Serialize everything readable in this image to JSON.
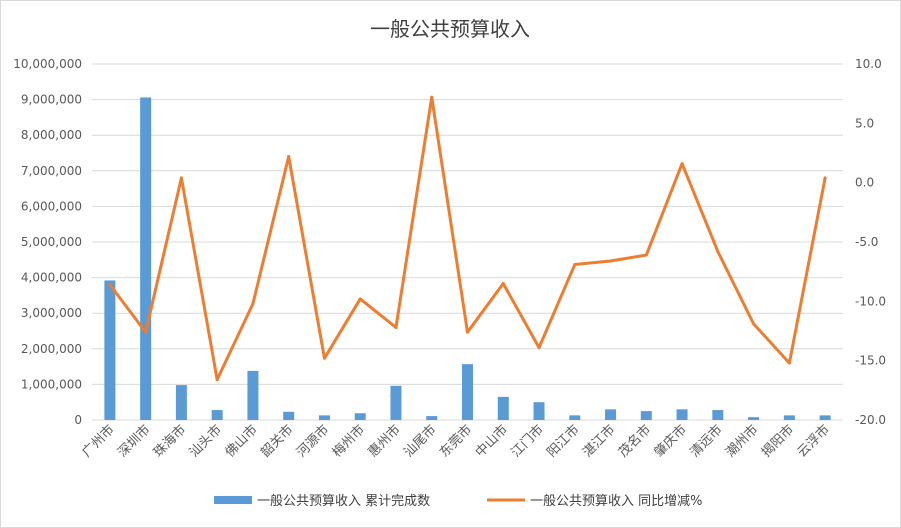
{
  "chart_data": {
    "type": "bar+line",
    "title": "一般公共预算收入",
    "categories": [
      "广州市",
      "深圳市",
      "珠海市",
      "汕头市",
      "佛山市",
      "韶关市",
      "河源市",
      "梅州市",
      "惠州市",
      "汕尾市",
      "东莞市",
      "中山市",
      "江门市",
      "阳江市",
      "湛江市",
      "茂名市",
      "肇庆市",
      "清远市",
      "潮州市",
      "揭阳市",
      "云浮市"
    ],
    "series": [
      {
        "name": "一般公共预算收入 累计完成数",
        "type": "bar",
        "axis": "left",
        "color": "#5B9BD5",
        "values": [
          3920000,
          9060000,
          980000,
          280000,
          1380000,
          230000,
          130000,
          190000,
          960000,
          110000,
          1570000,
          650000,
          500000,
          130000,
          300000,
          250000,
          300000,
          280000,
          80000,
          130000,
          130000
        ]
      },
      {
        "name": "一般公共预算收入 同比增减%",
        "type": "line",
        "axis": "right",
        "color": "#ED7D31",
        "values": [
          -8.6,
          -12.6,
          0.4,
          -16.6,
          -10.2,
          2.2,
          -14.8,
          -9.8,
          -12.2,
          7.2,
          -12.6,
          -8.5,
          -13.9,
          -6.9,
          -6.6,
          -6.1,
          1.6,
          -5.8,
          -11.9,
          -15.2,
          0.4
        ]
      }
    ],
    "y_left": {
      "min": 0,
      "max": 10000000,
      "ticks": [
        0,
        1000000,
        2000000,
        3000000,
        4000000,
        5000000,
        6000000,
        7000000,
        8000000,
        9000000,
        10000000
      ],
      "tick_labels": [
        "0",
        "1,000,000",
        "2,000,000",
        "3,000,000",
        "4,000,000",
        "5,000,000",
        "6,000,000",
        "7,000,000",
        "8,000,000",
        "9,000,000",
        "10,000,000"
      ]
    },
    "y_right": {
      "min": -20,
      "max": 10,
      "ticks": [
        -20,
        -15,
        -10,
        -5,
        0,
        5,
        10
      ],
      "tick_labels": [
        "-20.0",
        "-15.0",
        "-10.0",
        "-5.0",
        "0.0",
        "5.0",
        "10.0"
      ]
    },
    "grid": true,
    "legend_position": "bottom"
  }
}
